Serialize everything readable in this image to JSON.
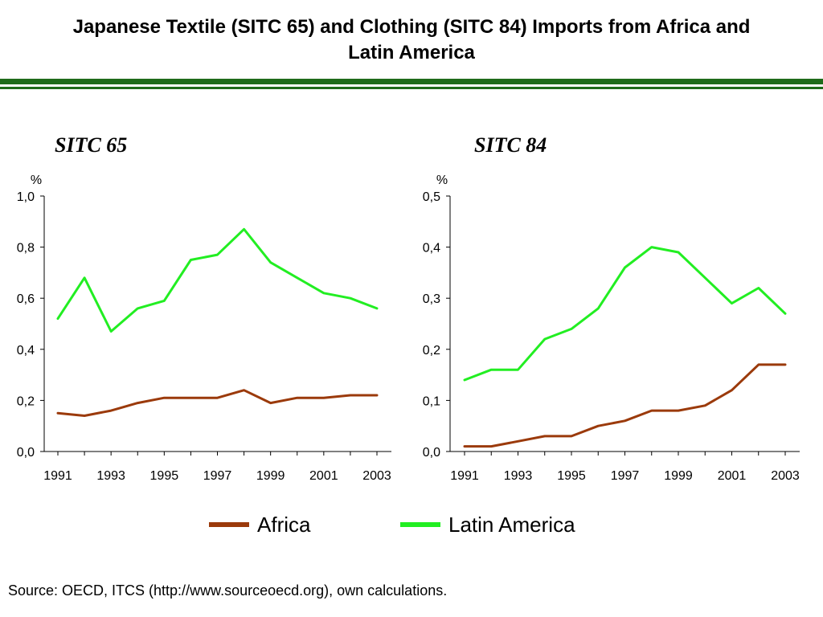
{
  "title": {
    "line1": "Japanese Textile (SITC 65) and Clothing (SITC 84) Imports from Africa and",
    "line2": "Latin America"
  },
  "colors": {
    "rule": "#1f6b1a",
    "africa": "#9b3a0b",
    "latin_america": "#22ee22",
    "axis": "#000000"
  },
  "legend": {
    "africa_label": "Africa",
    "latin_america_label": "Latin America"
  },
  "source": "Source: OECD, ITCS (http://www.sourceoecd.org), own calculations.",
  "chart_data": [
    {
      "type": "line",
      "title": "SITC 65",
      "ylabel": "%",
      "x": [
        1991,
        1992,
        1993,
        1994,
        1995,
        1996,
        1997,
        1998,
        1999,
        2000,
        2001,
        2002,
        2003
      ],
      "xticks": [
        "1991",
        "1993",
        "1995",
        "1997",
        "1999",
        "2001",
        "2003"
      ],
      "yticks": [
        "0,0",
        "0,2",
        "0,4",
        "0,6",
        "0,8",
        "1,0"
      ],
      "ylim": [
        0,
        1.0
      ],
      "grid": false,
      "series": [
        {
          "name": "Africa",
          "values": [
            0.15,
            0.14,
            0.16,
            0.19,
            0.21,
            0.21,
            0.21,
            0.24,
            0.19,
            0.21,
            0.21,
            0.22,
            0.22
          ]
        },
        {
          "name": "Latin America",
          "values": [
            0.52,
            0.68,
            0.47,
            0.56,
            0.59,
            0.75,
            0.77,
            0.87,
            0.74,
            0.68,
            0.62,
            0.6,
            0.56
          ]
        }
      ]
    },
    {
      "type": "line",
      "title": "SITC 84",
      "ylabel": "%",
      "x": [
        1991,
        1992,
        1993,
        1994,
        1995,
        1996,
        1997,
        1998,
        1999,
        2000,
        2001,
        2002,
        2003
      ],
      "xticks": [
        "1991",
        "1993",
        "1995",
        "1997",
        "1999",
        "2001",
        "2003"
      ],
      "yticks": [
        "0,0",
        "0,1",
        "0,2",
        "0,3",
        "0,4",
        "0,5"
      ],
      "ylim": [
        0,
        0.5
      ],
      "grid": false,
      "series": [
        {
          "name": "Africa",
          "values": [
            0.01,
            0.01,
            0.02,
            0.03,
            0.03,
            0.05,
            0.06,
            0.08,
            0.08,
            0.09,
            0.12,
            0.17,
            0.17
          ]
        },
        {
          "name": "Latin America",
          "values": [
            0.14,
            0.16,
            0.16,
            0.22,
            0.24,
            0.28,
            0.36,
            0.4,
            0.39,
            0.34,
            0.29,
            0.32,
            0.27
          ]
        }
      ]
    }
  ]
}
